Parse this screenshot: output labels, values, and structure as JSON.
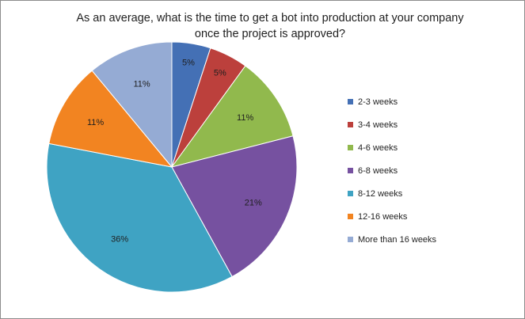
{
  "chart_data": {
    "type": "pie",
    "title_lines": [
      "As an average, what is the time to get a bot into production  at your company",
      "once the project is approved?"
    ],
    "categories": [
      "2-3 weeks",
      "3-4 weeks",
      "4-6 weeks",
      "6-8 weeks",
      "8-12 weeks",
      "12-16 weeks",
      "More than 16 weeks"
    ],
    "values": [
      5,
      5,
      11,
      21,
      36,
      11,
      11
    ],
    "data_labels": [
      "5%",
      "5%",
      "11%",
      "21%",
      "36%",
      "11%",
      "11%"
    ],
    "colors": [
      "#4470b5",
      "#bc403c",
      "#91b94d",
      "#7651a0",
      "#3fa3c3",
      "#f28421",
      "#95abd4"
    ],
    "legend_position": "right"
  }
}
